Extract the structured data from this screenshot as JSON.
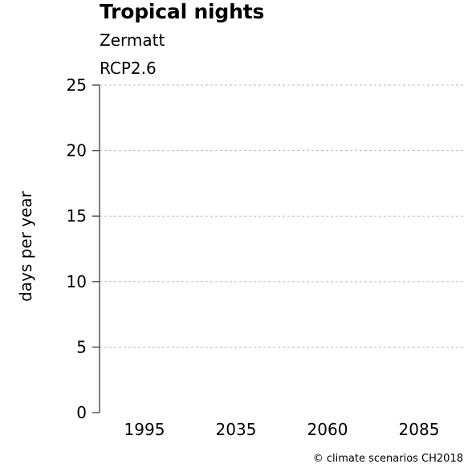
{
  "chart_data": {
    "type": "bar",
    "title": "Tropical nights",
    "subtitle_lines": [
      "Zermatt",
      "RCP2.6"
    ],
    "ylabel": "days per year",
    "categories": [
      "1995",
      "2035",
      "2060",
      "2085"
    ],
    "values": [
      0,
      0,
      0,
      0
    ],
    "ylim": [
      0,
      25
    ],
    "yticks": [
      0,
      5,
      10,
      15,
      20,
      25
    ],
    "grid": true
  },
  "credit": "© climate scenarios CH2018"
}
